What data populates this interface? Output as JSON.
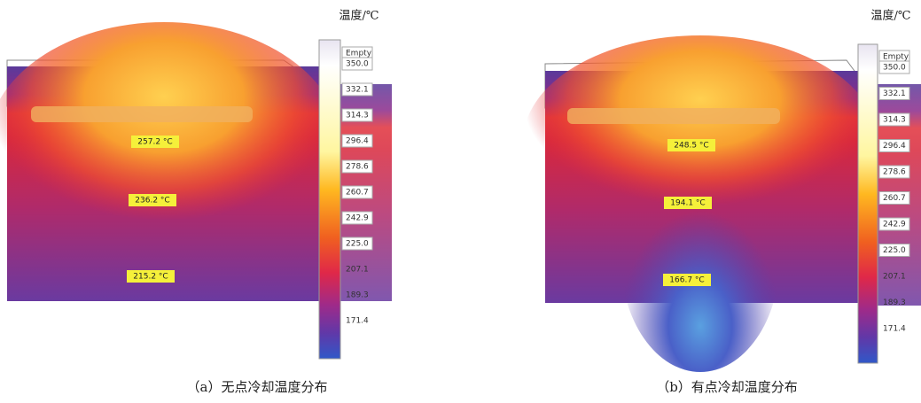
{
  "panels": [
    {
      "unit_label": "温度/℃",
      "colorbar": [
        "Empty",
        "350.0",
        "332.1",
        "314.3",
        "296.4",
        "278.6",
        "260.7",
        "242.9",
        "225.0",
        "207.1",
        "189.3",
        "171.4"
      ],
      "probes": [
        "257.2 °C",
        "236.2 °C",
        "215.2 °C"
      ],
      "caption": "（a）无点冷却温度分布"
    },
    {
      "unit_label": "温度/℃",
      "colorbar": [
        "Empty",
        "350.0",
        "332.1",
        "314.3",
        "296.4",
        "278.6",
        "260.7",
        "242.9",
        "225.0",
        "207.1",
        "189.3",
        "171.4"
      ],
      "probes": [
        "248.5 °C",
        "194.1 °C",
        "166.7 °C"
      ],
      "caption": "（b）有点冷却温度分布"
    }
  ]
}
